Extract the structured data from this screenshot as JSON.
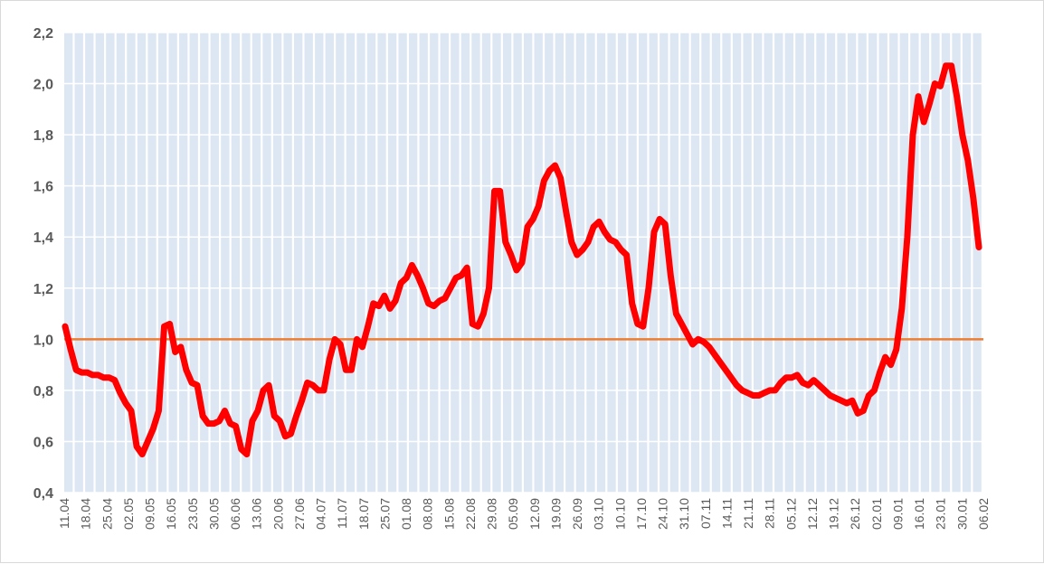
{
  "chart_data": {
    "type": "line",
    "title": "",
    "xlabel": "",
    "ylabel": "",
    "ylim": [
      0.4,
      2.2
    ],
    "y_ticks": [
      "0,4",
      "0,6",
      "0,8",
      "1,0",
      "1,2",
      "1,4",
      "1,6",
      "1,8",
      "2,0",
      "2,2"
    ],
    "x_tick_labels": [
      "11.04",
      "18.04",
      "25.04",
      "02.05",
      "09.05",
      "16.05",
      "23.05",
      "30.05",
      "06.06",
      "13.06",
      "20.06",
      "27.06",
      "04.07",
      "11.07",
      "18.07",
      "25.07",
      "01.08",
      "08.08",
      "15.08",
      "22.08",
      "29.08",
      "05.09",
      "12.09",
      "19.09",
      "26.09",
      "03.10",
      "10.10",
      "17.10",
      "24.10",
      "31.10",
      "07.11",
      "14.11",
      "21.11",
      "28.11",
      "05.12",
      "12.12",
      "19.12",
      "26.12",
      "02.01",
      "09.01",
      "16.01",
      "23.01",
      "30.01",
      "06.02"
    ],
    "grid": "vertical bands",
    "reference_line": {
      "value": 1.0,
      "color": "#ed7d31"
    },
    "series": [
      {
        "color": "#ff0000",
        "values": [
          1.05,
          0.96,
          0.88,
          0.87,
          0.87,
          0.86,
          0.86,
          0.85,
          0.85,
          0.84,
          0.79,
          0.75,
          0.72,
          0.58,
          0.55,
          0.6,
          0.65,
          0.72,
          1.05,
          1.06,
          0.95,
          0.97,
          0.88,
          0.83,
          0.82,
          0.7,
          0.67,
          0.67,
          0.68,
          0.72,
          0.67,
          0.66,
          0.57,
          0.55,
          0.68,
          0.72,
          0.8,
          0.82,
          0.7,
          0.68,
          0.62,
          0.63,
          0.7,
          0.76,
          0.83,
          0.82,
          0.8,
          0.8,
          0.92,
          1.0,
          0.98,
          0.88,
          0.88,
          1.0,
          0.97,
          1.05,
          1.14,
          1.13,
          1.17,
          1.12,
          1.15,
          1.22,
          1.24,
          1.29,
          1.25,
          1.2,
          1.14,
          1.13,
          1.15,
          1.16,
          1.2,
          1.24,
          1.25,
          1.28,
          1.06,
          1.05,
          1.1,
          1.2,
          1.58,
          1.58,
          1.38,
          1.33,
          1.27,
          1.3,
          1.44,
          1.47,
          1.52,
          1.62,
          1.66,
          1.68,
          1.63,
          1.5,
          1.38,
          1.33,
          1.35,
          1.38,
          1.44,
          1.46,
          1.42,
          1.39,
          1.38,
          1.35,
          1.33,
          1.14,
          1.06,
          1.05,
          1.2,
          1.42,
          1.47,
          1.45,
          1.25,
          1.1,
          1.06,
          1.02,
          0.98,
          1.0,
          0.99,
          0.97,
          0.94,
          0.91,
          0.88,
          0.85,
          0.82,
          0.8,
          0.79,
          0.78,
          0.78,
          0.79,
          0.8,
          0.8,
          0.83,
          0.85,
          0.85,
          0.86,
          0.83,
          0.82,
          0.84,
          0.82,
          0.8,
          0.78,
          0.77,
          0.76,
          0.75,
          0.76,
          0.71,
          0.72,
          0.78,
          0.8,
          0.87,
          0.93,
          0.9,
          0.96,
          1.12,
          1.4,
          1.8,
          1.95,
          1.85,
          1.92,
          2.0,
          1.99,
          2.07,
          2.07,
          1.95,
          1.8,
          1.7,
          1.55,
          1.36
        ]
      }
    ]
  }
}
